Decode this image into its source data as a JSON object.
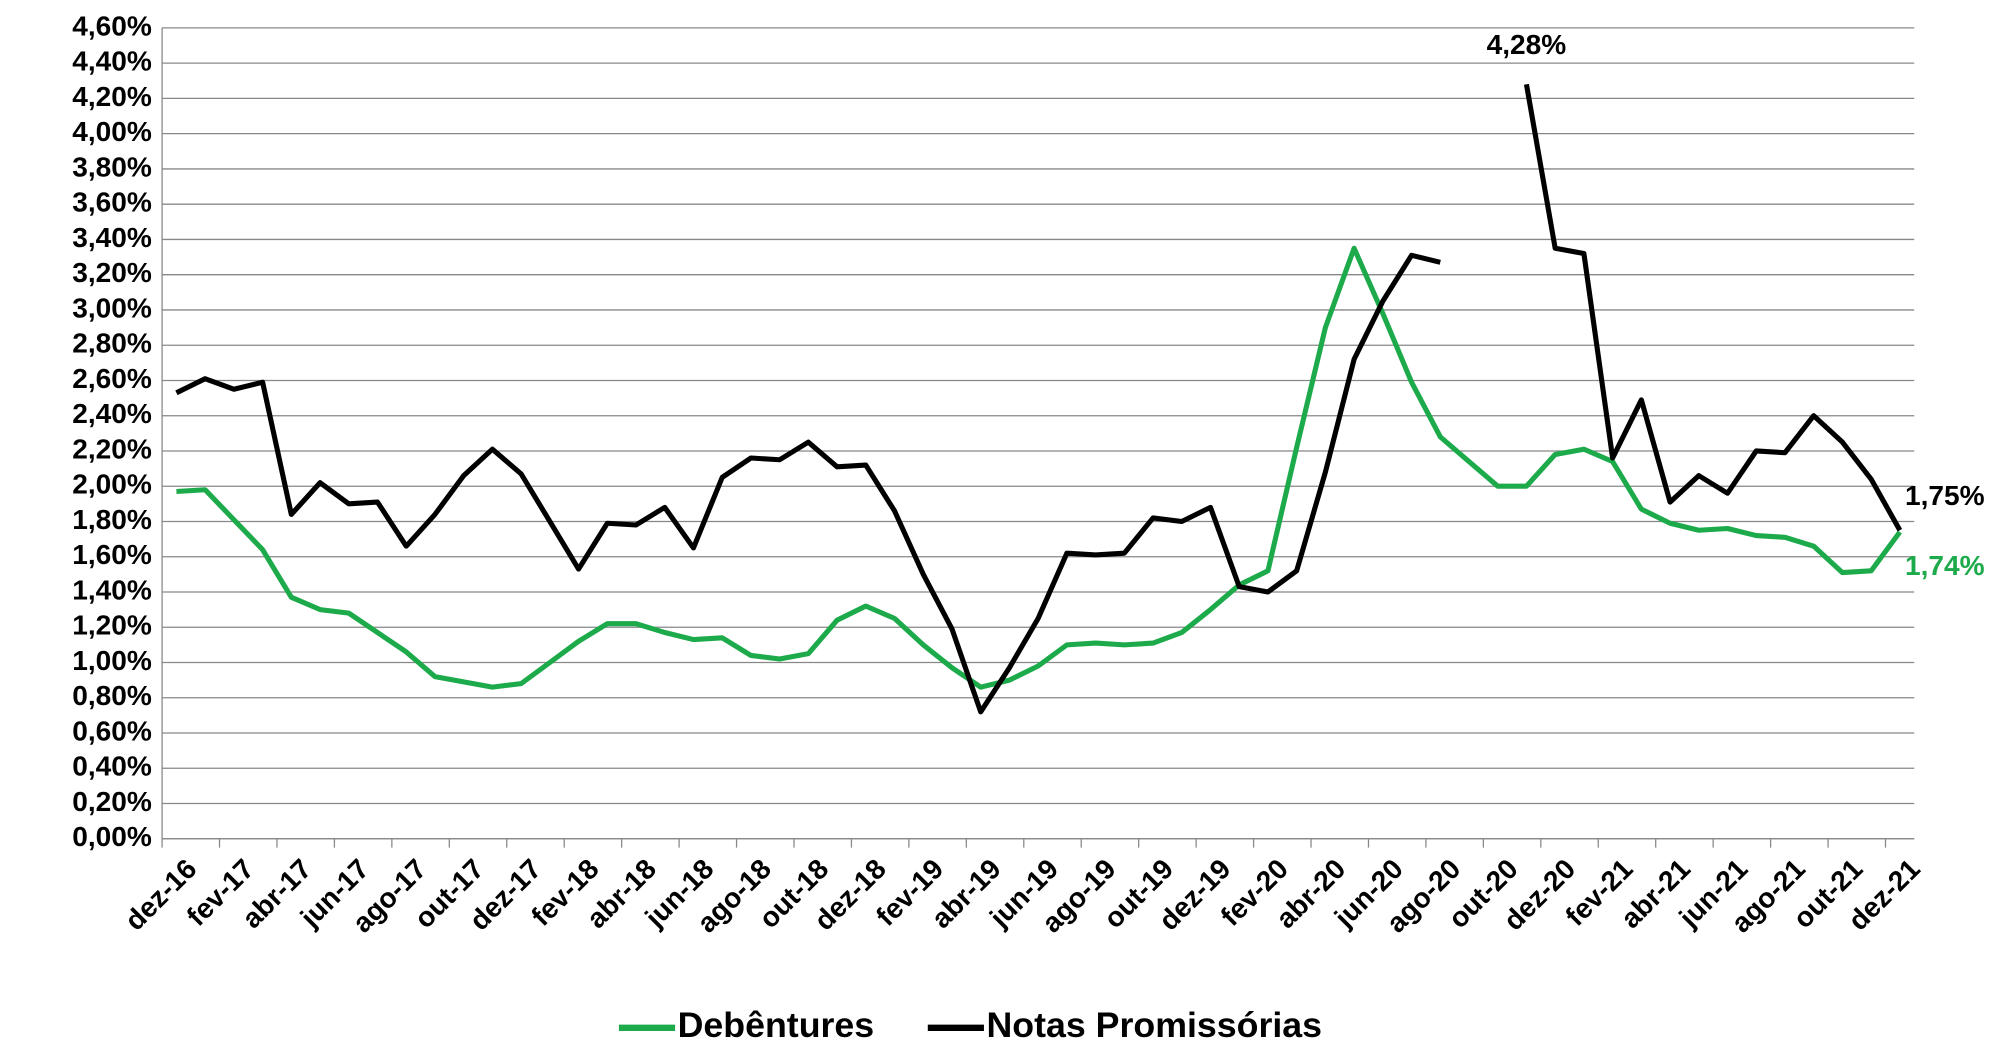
{
  "chart_data": {
    "type": "line",
    "categories": [
      "dez-16",
      null,
      "fev-17",
      null,
      "abr-17",
      null,
      "jun-17",
      null,
      "ago-17",
      null,
      "out-17",
      null,
      "dez-17",
      null,
      "fev-18",
      null,
      "abr-18",
      null,
      "jun-18",
      null,
      "ago-18",
      null,
      "out-18",
      null,
      "dez-18",
      null,
      "fev-19",
      null,
      "abr-19",
      null,
      "jun-19",
      null,
      "ago-19",
      null,
      "out-19",
      null,
      "dez-19",
      null,
      "fev-20",
      null,
      "abr-20",
      null,
      "jun-20",
      null,
      "ago-20",
      null,
      "out-20",
      null,
      "dez-20",
      null,
      "fev-21",
      null,
      "abr-21",
      null,
      "jun-21",
      null,
      "ago-21",
      null,
      "out-21",
      null,
      "dez-21"
    ],
    "series": [
      {
        "name": "Debêntures",
        "color": "#1daa4b",
        "values": [
          1.97,
          1.98,
          1.81,
          1.64,
          1.37,
          1.3,
          1.28,
          1.17,
          1.06,
          0.92,
          0.89,
          0.86,
          0.88,
          1.0,
          1.12,
          1.22,
          1.22,
          1.17,
          1.13,
          1.14,
          1.04,
          1.02,
          1.05,
          1.24,
          1.32,
          1.25,
          1.1,
          0.97,
          0.86,
          0.9,
          0.98,
          1.1,
          1.11,
          1.1,
          1.11,
          1.17,
          1.3,
          1.44,
          1.52,
          2.22,
          2.9,
          3.35,
          2.98,
          2.59,
          2.28,
          2.14,
          2.0,
          2.0,
          2.18,
          2.21,
          2.14,
          1.87,
          1.79,
          1.75,
          1.76,
          1.72,
          1.71,
          1.66,
          1.51,
          1.52,
          1.74
        ],
        "value_labels": [
          null,
          null,
          null,
          null,
          null,
          null,
          null,
          null,
          null,
          null,
          null,
          null,
          null,
          null,
          null,
          null,
          null,
          null,
          null,
          null,
          null,
          null,
          null,
          null,
          null,
          null,
          null,
          null,
          null,
          null,
          null,
          null,
          null,
          null,
          null,
          null,
          null,
          null,
          null,
          null,
          null,
          null,
          null,
          null,
          null,
          null,
          null,
          null,
          null,
          null,
          null,
          null,
          null,
          null,
          null,
          null,
          null,
          null,
          null,
          null,
          "1,74%"
        ]
      },
      {
        "name": "Notas Promissórias",
        "color": "#000000",
        "values": [
          2.53,
          2.61,
          2.55,
          2.59,
          1.84,
          2.02,
          1.9,
          1.91,
          1.66,
          1.84,
          2.06,
          2.21,
          2.07,
          1.8,
          1.53,
          1.79,
          1.78,
          1.88,
          1.65,
          2.05,
          2.16,
          2.15,
          2.25,
          2.11,
          2.12,
          1.86,
          1.5,
          1.19,
          0.72,
          0.97,
          1.25,
          1.62,
          1.61,
          1.62,
          1.82,
          1.8,
          1.88,
          1.43,
          1.4,
          1.52,
          2.08,
          2.72,
          3.05,
          3.31,
          3.27,
          null,
          null,
          4.28,
          3.35,
          3.32,
          2.16,
          2.49,
          1.91,
          2.06,
          1.96,
          2.2,
          2.19,
          2.4,
          2.25,
          2.04,
          1.75
        ],
        "value_labels": [
          null,
          null,
          null,
          null,
          null,
          null,
          null,
          null,
          null,
          null,
          null,
          null,
          null,
          null,
          null,
          null,
          null,
          null,
          null,
          null,
          null,
          null,
          null,
          null,
          null,
          null,
          null,
          null,
          null,
          null,
          null,
          null,
          null,
          null,
          null,
          null,
          null,
          null,
          null,
          null,
          null,
          null,
          null,
          null,
          null,
          null,
          null,
          "4,28%",
          null,
          null,
          null,
          null,
          null,
          null,
          null,
          null,
          null,
          null,
          null,
          null,
          "1,75%"
        ]
      }
    ],
    "ylim": [
      0,
      4.6
    ],
    "yticks": [
      {
        "value": 0,
        "label": "0,00%"
      },
      {
        "value": 0.2,
        "label": "0,20%"
      },
      {
        "value": 0.4,
        "label": "0,40%"
      },
      {
        "value": 0.6,
        "label": "0,60%"
      },
      {
        "value": 0.8,
        "label": "0,80%"
      },
      {
        "value": 1.0,
        "label": "1,00%"
      },
      {
        "value": 1.2,
        "label": "1,20%"
      },
      {
        "value": 1.4,
        "label": "1,40%"
      },
      {
        "value": 1.6,
        "label": "1,60%"
      },
      {
        "value": 1.8,
        "label": "1,80%"
      },
      {
        "value": 2.0,
        "label": "2,00%"
      },
      {
        "value": 2.2,
        "label": "2,20%"
      },
      {
        "value": 2.4,
        "label": "2,40%"
      },
      {
        "value": 2.6,
        "label": "2,60%"
      },
      {
        "value": 2.8,
        "label": "2,80%"
      },
      {
        "value": 3.0,
        "label": "3,00%"
      },
      {
        "value": 3.2,
        "label": "3,20%"
      },
      {
        "value": 3.4,
        "label": "3,40%"
      },
      {
        "value": 3.6,
        "label": "3,60%"
      },
      {
        "value": 3.8,
        "label": "3,80%"
      },
      {
        "value": 4.0,
        "label": "4,00%"
      },
      {
        "value": 4.2,
        "label": "4,20%"
      },
      {
        "value": 4.4,
        "label": "4,40%"
      },
      {
        "value": 4.6,
        "label": "4,60%"
      }
    ],
    "grid": true,
    "legend": "bottom"
  }
}
